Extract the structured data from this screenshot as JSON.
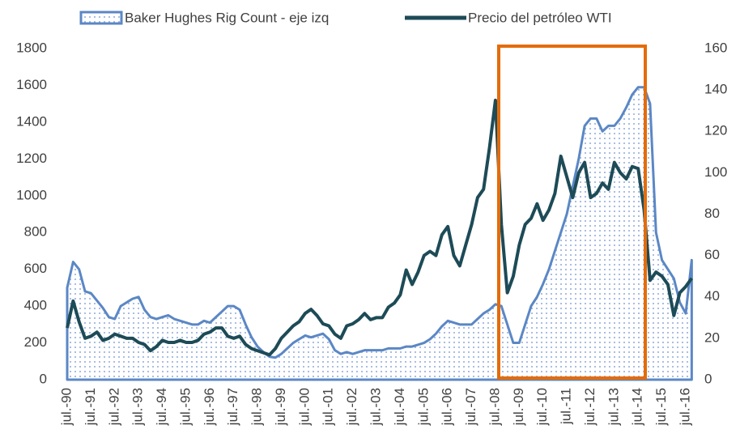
{
  "chart_data": {
    "type": "area-line",
    "categories": [
      "jul.-90",
      null,
      null,
      null,
      "jul.-91",
      null,
      null,
      null,
      "jul.-92",
      null,
      null,
      null,
      "jul.-93",
      null,
      null,
      null,
      "jul.-94",
      null,
      null,
      null,
      "jul.-95",
      null,
      null,
      null,
      "jul.-96",
      null,
      null,
      null,
      "jul.-97",
      null,
      null,
      null,
      "jul.-98",
      null,
      null,
      null,
      "jul.-99",
      null,
      null,
      null,
      "jul.-00",
      null,
      null,
      null,
      "jul.-01",
      null,
      null,
      null,
      "jul.-02",
      null,
      null,
      null,
      "jul.-03",
      null,
      null,
      null,
      "jul.-04",
      null,
      null,
      null,
      "jul.-05",
      null,
      null,
      null,
      "jul.-06",
      null,
      null,
      null,
      "jul.-07",
      null,
      null,
      null,
      "jul.-08",
      null,
      null,
      null,
      "jul.-09",
      null,
      null,
      null,
      "jul.-10",
      null,
      null,
      null,
      "jul.-11",
      null,
      null,
      null,
      "jul.-12",
      null,
      null,
      null,
      "jul.-13",
      null,
      null,
      null,
      "jul.-14",
      null,
      null,
      null,
      "jul.-15",
      null,
      null,
      null,
      "jul.-16",
      null
    ],
    "series": [
      {
        "name": "Baker Hughes Rig Count - eje izq",
        "type": "area",
        "axis": "y",
        "color": "#5b87c5",
        "values": [
          500,
          640,
          600,
          480,
          470,
          430,
          390,
          340,
          330,
          400,
          420,
          440,
          450,
          380,
          340,
          330,
          340,
          350,
          330,
          320,
          310,
          300,
          300,
          320,
          310,
          340,
          370,
          400,
          400,
          380,
          300,
          230,
          180,
          150,
          125,
          120,
          140,
          170,
          200,
          220,
          240,
          230,
          240,
          250,
          220,
          160,
          140,
          150,
          140,
          150,
          160,
          160,
          160,
          160,
          170,
          170,
          170,
          180,
          180,
          190,
          200,
          220,
          250,
          290,
          320,
          310,
          300,
          300,
          300,
          330,
          360,
          380,
          410,
          400,
          300,
          200,
          200,
          300,
          400,
          450,
          520,
          600,
          700,
          800,
          900,
          1050,
          1200,
          1380,
          1420,
          1420,
          1350,
          1380,
          1380,
          1420,
          1480,
          1550,
          1590,
          1590,
          1500,
          800,
          650,
          600,
          550,
          420,
          360,
          650
        ]
      },
      {
        "name": "Precio del petróleo WTI",
        "type": "line",
        "axis": "y2",
        "color": "#1d4b57",
        "values": [
          25,
          38,
          28,
          20,
          21,
          23,
          19,
          20,
          22,
          21,
          20,
          20,
          18,
          17,
          14,
          16,
          19,
          18,
          18,
          19,
          18,
          18,
          19,
          22,
          23,
          25,
          25,
          21,
          20,
          21,
          17,
          15,
          14,
          13,
          12,
          15,
          20,
          23,
          26,
          28,
          32,
          34,
          31,
          27,
          26,
          22,
          20,
          26,
          27,
          29,
          32,
          29,
          30,
          30,
          35,
          37,
          41,
          53,
          46,
          52,
          60,
          62,
          60,
          70,
          74,
          60,
          55,
          65,
          75,
          88,
          92,
          112,
          135,
          75,
          42,
          50,
          65,
          75,
          78,
          85,
          77,
          82,
          90,
          108,
          98,
          88,
          100,
          105,
          88,
          90,
          95,
          92,
          105,
          100,
          97,
          103,
          102,
          82,
          48,
          52,
          50,
          46,
          31,
          42,
          45,
          49
        ]
      }
    ],
    "ylim": [
      0,
      1800
    ],
    "yticks": [
      0,
      200,
      400,
      600,
      800,
      1000,
      1200,
      1400,
      1600,
      1800
    ],
    "y2lim": [
      0,
      160
    ],
    "y2ticks": [
      0,
      20,
      40,
      60,
      80,
      100,
      120,
      140,
      160
    ],
    "legend": "top"
  }
}
